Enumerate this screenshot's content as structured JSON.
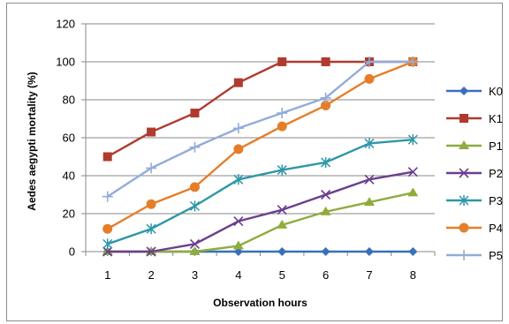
{
  "chart_data": {
    "type": "line",
    "xlabel": "Observation hours",
    "ylabel": "Aedes aegypti mortality (%)",
    "x": [
      1,
      2,
      3,
      4,
      5,
      6,
      7,
      8
    ],
    "ylim": [
      0,
      120
    ],
    "yticks": [
      0,
      20,
      40,
      60,
      80,
      100,
      120
    ],
    "grid": "horizontal",
    "legend_position": "right",
    "series": [
      {
        "name": "K0",
        "color": "#3a6fba",
        "marker": "diamond",
        "values": [
          0,
          0,
          0,
          0,
          0,
          0,
          0,
          0
        ]
      },
      {
        "name": "K1",
        "color": "#b03a2e",
        "marker": "square",
        "values": [
          50,
          63,
          73,
          89,
          100,
          100,
          100,
          100
        ]
      },
      {
        "name": "P1",
        "color": "#8fac3e",
        "marker": "triangle",
        "values": [
          0,
          0,
          0,
          3,
          14,
          21,
          26,
          31
        ]
      },
      {
        "name": "P2",
        "color": "#6a3f8e",
        "marker": "x",
        "values": [
          0,
          0,
          4,
          16,
          22,
          30,
          38,
          42
        ]
      },
      {
        "name": "P3",
        "color": "#2f97a8",
        "marker": "star",
        "values": [
          4,
          12,
          24,
          38,
          43,
          47,
          57,
          59
        ]
      },
      {
        "name": "P4",
        "color": "#e57e2a",
        "marker": "circle",
        "values": [
          12,
          25,
          34,
          54,
          66,
          77,
          91,
          100
        ]
      },
      {
        "name": "P5",
        "color": "#93acd8",
        "marker": "plus",
        "values": [
          29,
          44,
          55,
          65,
          73,
          81,
          100,
          100
        ]
      }
    ]
  }
}
